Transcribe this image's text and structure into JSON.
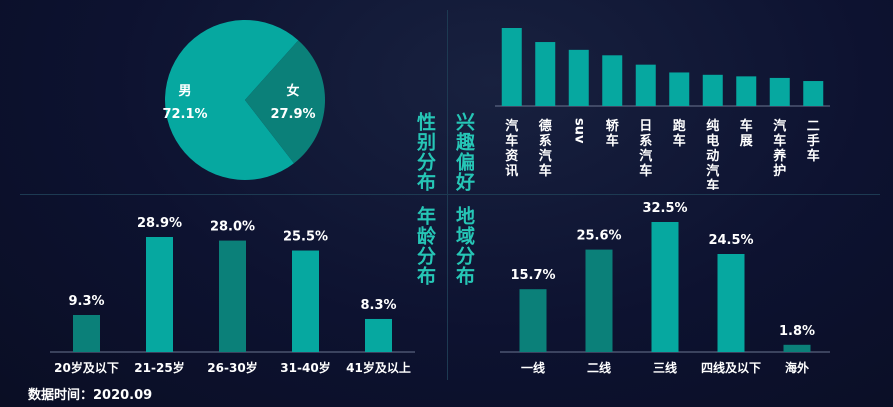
{
  "footer": {
    "data_time": "数据时间：2020.09"
  },
  "titles": {
    "gender": "性别分布",
    "interest": "兴趣偏好",
    "age": "年龄分布",
    "region": "地域分布"
  },
  "colors": {
    "teal": "#06a8a0",
    "teal_dark": "#0b8079",
    "axis": "#6a7590",
    "title": "#26c6b6"
  },
  "chart_data": [
    {
      "id": "gender",
      "type": "pie",
      "categories": [
        "男",
        "女"
      ],
      "values": [
        72.1,
        27.9
      ],
      "value_labels": [
        "72.1%",
        "27.9%"
      ],
      "colors": [
        "#06a8a0",
        "#0b8079"
      ]
    },
    {
      "id": "interest",
      "type": "bar",
      "categories": [
        "汽车资讯",
        "德系汽车",
        "suv",
        "轿车",
        "日系汽车",
        "跑车",
        "纯电动汽车",
        "车展",
        "汽车养护",
        "二手车"
      ],
      "values": [
        100,
        82,
        72,
        65,
        53,
        43,
        40,
        38,
        36,
        32
      ],
      "axis": {
        "y_ticks": "none",
        "grid": false
      }
    },
    {
      "id": "age",
      "type": "bar",
      "categories": [
        "20岁及以下",
        "21-25岁",
        "26-30岁",
        "31-40岁",
        "41岁及以上"
      ],
      "values": [
        9.3,
        28.9,
        28.0,
        25.5,
        8.3
      ],
      "value_labels": [
        "9.3%",
        "28.9%",
        "28.0%",
        "25.5%",
        "8.3%"
      ],
      "colors": [
        "#0b8079",
        "#06a8a0",
        "#0b8079",
        "#06a8a0",
        "#06a8a0"
      ]
    },
    {
      "id": "region",
      "type": "bar",
      "categories": [
        "一线",
        "二线",
        "三线",
        "四线及以下",
        "海外"
      ],
      "values": [
        15.7,
        25.6,
        32.5,
        24.5,
        1.8
      ],
      "value_labels": [
        "15.7%",
        "25.6%",
        "32.5%",
        "24.5%",
        "1.8%"
      ],
      "colors": [
        "#0b8079",
        "#0b8079",
        "#06a8a0",
        "#06a8a0",
        "#0b8079"
      ]
    }
  ]
}
